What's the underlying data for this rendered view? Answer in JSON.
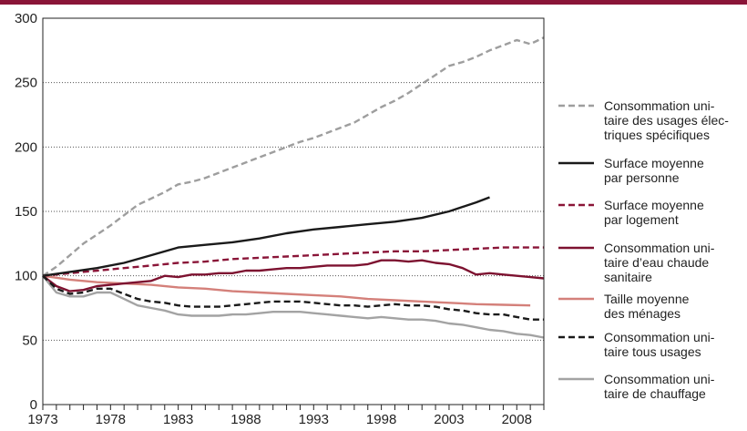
{
  "chart_data": {
    "type": "line",
    "title": "",
    "xlabel": "",
    "ylabel": "",
    "xlim": [
      1973,
      2010
    ],
    "ylim": [
      0,
      300
    ],
    "y_ticks": [
      0,
      50,
      100,
      150,
      200,
      250,
      300
    ],
    "x_tick_labels": [
      1973,
      1978,
      1983,
      1988,
      1993,
      1998,
      2003,
      2008
    ],
    "grid": "horizontal dotted",
    "legend_position": "right",
    "series": [
      {
        "name": "Consommation unitaire des usages électriques spécifiques",
        "legend_lines": [
          "Consommation uni-",
          "taire des usages élec-",
          "triques spécifiques"
        ],
        "color": "#9e9e9e",
        "dash": "dashed",
        "x": [
          1973,
          1974,
          1975,
          1976,
          1977,
          1978,
          1979,
          1980,
          1981,
          1982,
          1983,
          1984,
          1985,
          1986,
          1987,
          1988,
          1989,
          1990,
          1991,
          1992,
          1993,
          1994,
          1995,
          1996,
          1997,
          1998,
          1999,
          2000,
          2001,
          2002,
          2003,
          2004,
          2005,
          2006,
          2007,
          2008,
          2009,
          2010
        ],
        "y": [
          100,
          107,
          116,
          125,
          132,
          139,
          147,
          155,
          160,
          165,
          171,
          173,
          176,
          180,
          184,
          188,
          192,
          196,
          200,
          204,
          207,
          211,
          215,
          219,
          225,
          231,
          236,
          242,
          249,
          256,
          263,
          266,
          270,
          275,
          279,
          283,
          280,
          285
        ]
      },
      {
        "name": "Surface moyenne par personne",
        "legend_lines": [
          "Surface moyenne",
          "par personne"
        ],
        "color": "#1a1a1a",
        "dash": "solid",
        "x": [
          1973,
          1975,
          1977,
          1979,
          1981,
          1983,
          1985,
          1987,
          1989,
          1991,
          1993,
          1995,
          1997,
          1999,
          2001,
          2003,
          2005,
          2006
        ],
        "y": [
          100,
          103,
          106,
          110,
          116,
          122,
          124,
          126,
          129,
          133,
          136,
          138,
          140,
          142,
          145,
          150,
          157,
          161
        ]
      },
      {
        "name": "Surface moyenne par logement",
        "legend_lines": [
          "Surface moyenne",
          "par logement"
        ],
        "color": "#8a1538",
        "dash": "dashed",
        "x": [
          1973,
          1975,
          1977,
          1979,
          1981,
          1983,
          1985,
          1987,
          1989,
          1991,
          1993,
          1995,
          1997,
          1999,
          2001,
          2003,
          2005,
          2007,
          2010
        ],
        "y": [
          100,
          102,
          104,
          106,
          108,
          110,
          111,
          113,
          114,
          115,
          116,
          117,
          118,
          119,
          119,
          120,
          121,
          122,
          122
        ]
      },
      {
        "name": "Consommation unitaire d'eau chaude sanitaire",
        "legend_lines": [
          "Consommation uni-",
          "taire d’eau chaude",
          "sanitaire"
        ],
        "color": "#7d1230",
        "dash": "solid",
        "x": [
          1973,
          1974,
          1975,
          1976,
          1977,
          1978,
          1979,
          1980,
          1981,
          1982,
          1983,
          1984,
          1985,
          1986,
          1987,
          1988,
          1989,
          1990,
          1991,
          1992,
          1993,
          1994,
          1995,
          1996,
          1997,
          1998,
          1999,
          2000,
          2001,
          2002,
          2003,
          2004,
          2005,
          2006,
          2007,
          2008,
          2009,
          2010
        ],
        "y": [
          100,
          92,
          88,
          89,
          92,
          93,
          94,
          95,
          96,
          100,
          99,
          101,
          101,
          102,
          102,
          104,
          104,
          105,
          106,
          106,
          107,
          108,
          108,
          108,
          109,
          112,
          112,
          111,
          112,
          110,
          109,
          106,
          101,
          102,
          101,
          100,
          99,
          98
        ]
      },
      {
        "name": "Taille moyenne des ménages",
        "legend_lines": [
          "Taille moyenne",
          "des ménages"
        ],
        "color": "#d4807a",
        "dash": "solid",
        "x": [
          1973,
          1975,
          1977,
          1979,
          1981,
          1983,
          1985,
          1987,
          1989,
          1991,
          1993,
          1995,
          1997,
          1999,
          2001,
          2003,
          2005,
          2007,
          2009
        ],
        "y": [
          100,
          97,
          95,
          94,
          93,
          91,
          90,
          88,
          87,
          86,
          85,
          84,
          82,
          81,
          80,
          79,
          78,
          77.5,
          77
        ]
      },
      {
        "name": "Consommation unitaire tous usages",
        "legend_lines": [
          "Consommation uni-",
          "taire tous usages"
        ],
        "color": "#1a1a1a",
        "dash": "dashed",
        "x": [
          1973,
          1974,
          1975,
          1976,
          1977,
          1978,
          1979,
          1980,
          1981,
          1982,
          1983,
          1984,
          1985,
          1986,
          1987,
          1988,
          1989,
          1990,
          1991,
          1992,
          1993,
          1994,
          1995,
          1996,
          1997,
          1998,
          1999,
          2000,
          2001,
          2002,
          2003,
          2004,
          2005,
          2006,
          2007,
          2008,
          2009,
          2010
        ],
        "y": [
          100,
          90,
          86,
          87,
          90,
          90,
          86,
          82,
          80,
          79,
          77,
          76,
          76,
          76,
          77,
          78,
          79,
          80,
          80,
          80,
          79,
          78,
          77,
          77,
          76,
          77,
          78,
          77,
          77,
          76,
          74,
          73,
          71,
          70,
          70,
          68,
          66,
          66
        ]
      },
      {
        "name": "Consommation unitaire de chauffage",
        "legend_lines": [
          "Consommation uni-",
          "taire de chauffage"
        ],
        "color": "#a3a3a3",
        "dash": "solid",
        "x": [
          1973,
          1974,
          1975,
          1976,
          1977,
          1978,
          1979,
          1980,
          1981,
          1982,
          1983,
          1984,
          1985,
          1986,
          1987,
          1988,
          1989,
          1990,
          1991,
          1992,
          1993,
          1994,
          1995,
          1996,
          1997,
          1998,
          1999,
          2000,
          2001,
          2002,
          2003,
          2004,
          2005,
          2006,
          2007,
          2008,
          2009,
          2010
        ],
        "y": [
          100,
          87,
          84,
          84,
          87,
          87,
          82,
          77,
          75,
          73,
          70,
          69,
          69,
          69,
          70,
          70,
          71,
          72,
          72,
          72,
          71,
          70,
          69,
          68,
          67,
          68,
          67,
          66,
          66,
          65,
          63,
          62,
          60,
          58,
          57,
          55,
          54,
          52
        ]
      }
    ]
  }
}
